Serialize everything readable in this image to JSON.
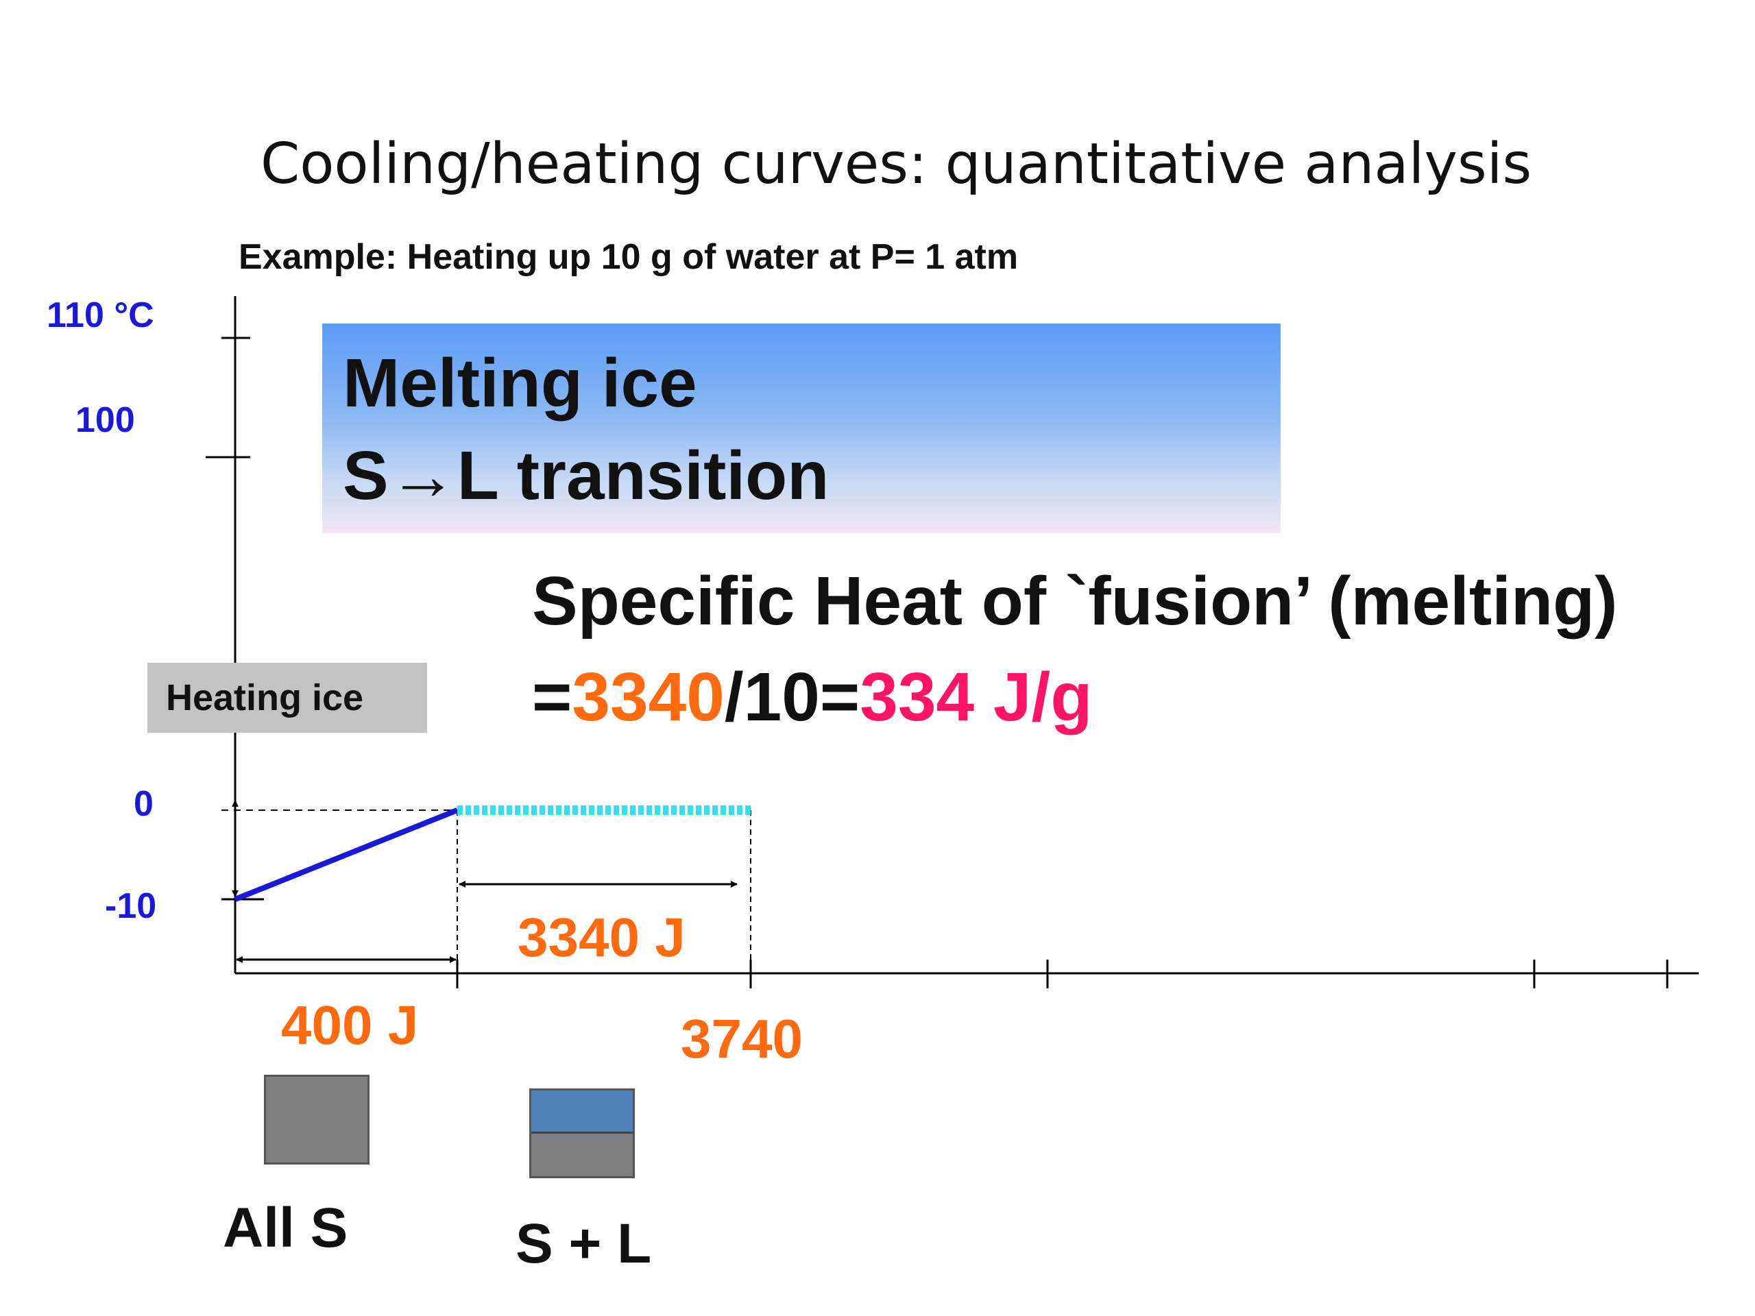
{
  "title": "Cooling/heating curves: quantitative analysis",
  "subtitle": "Example: Heating up 10 g of water at P= 1 atm",
  "y_axis": {
    "labels": [
      "110 °C",
      "100",
      "0",
      "-10"
    ]
  },
  "callout_melting": {
    "line1": "Melting ice",
    "line2": "S→L transition"
  },
  "callout_heating": "Heating ice",
  "fusion": {
    "heading": "Specific Heat of `fusion’ (melting)",
    "eq_prefix": "=",
    "energy": "3340",
    "divisor": "/10=",
    "result": "334 J/g"
  },
  "energies": {
    "heating_ice": "400 J",
    "melting": "3340 J",
    "cumulative": "3740"
  },
  "states": {
    "solid": "All  S",
    "solid_liquid": "S + L"
  },
  "colors": {
    "axis_label": "#1a1ad6",
    "heating_line": "#1a1ad6",
    "melting_line": "#33e0ec",
    "energy": "#ff6a10",
    "result": "#ff1466",
    "solid_block": "#7f7f7f",
    "liquid_block": "#4f81bd"
  }
}
